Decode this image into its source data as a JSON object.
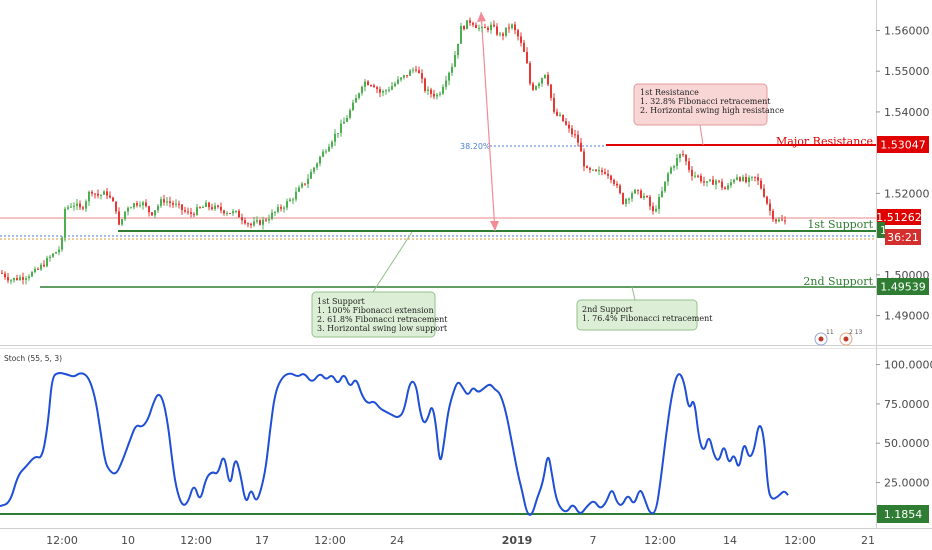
{
  "chart_data": [
    {
      "type": "candlestick",
      "indicator_name": "",
      "y_ticks": [
        "1.56000",
        "1.55000",
        "1.54000",
        "1.52000",
        "1.50000",
        "1.49000"
      ],
      "ylim": [
        1.484,
        1.5665
      ],
      "x_ticks": [
        "12:00",
        "10",
        "12:00",
        "17",
        "12:00",
        "24",
        "2019",
        "7",
        "12:00",
        "14",
        "12:00",
        "21"
      ],
      "price_path": [
        [
          0,
          1.5005
        ],
        [
          10,
          1.4988
        ],
        [
          22,
          1.4995
        ],
        [
          35,
          1.5008
        ],
        [
          50,
          1.5045
        ],
        [
          60,
          1.5068
        ],
        [
          62,
          1.51
        ],
        [
          64,
          1.5162
        ],
        [
          72,
          1.5175
        ],
        [
          80,
          1.516
        ],
        [
          90,
          1.521
        ],
        [
          96,
          1.5195
        ],
        [
          106,
          1.52
        ],
        [
          116,
          1.5158
        ],
        [
          118,
          1.5118
        ],
        [
          126,
          1.5168
        ],
        [
          140,
          1.518
        ],
        [
          150,
          1.515
        ],
        [
          162,
          1.5185
        ],
        [
          175,
          1.517
        ],
        [
          188,
          1.5148
        ],
        [
          205,
          1.517
        ],
        [
          222,
          1.5158
        ],
        [
          236,
          1.515
        ],
        [
          250,
          1.5122
        ],
        [
          262,
          1.5132
        ],
        [
          275,
          1.5155
        ],
        [
          290,
          1.5185
        ],
        [
          305,
          1.523
        ],
        [
          318,
          1.5285
        ],
        [
          330,
          1.533
        ],
        [
          342,
          1.537
        ],
        [
          354,
          1.5425
        ],
        [
          362,
          1.5475
        ],
        [
          372,
          1.547
        ],
        [
          380,
          1.5445
        ],
        [
          390,
          1.5462
        ],
        [
          405,
          1.549
        ],
        [
          415,
          1.551
        ],
        [
          425,
          1.545
        ],
        [
          437,
          1.544
        ],
        [
          445,
          1.5485
        ],
        [
          452,
          1.552
        ],
        [
          460,
          1.5605
        ],
        [
          470,
          1.5625
        ],
        [
          480,
          1.56
        ],
        [
          490,
          1.561
        ],
        [
          500,
          1.5585
        ],
        [
          510,
          1.5615
        ],
        [
          518,
          1.558
        ],
        [
          525,
          1.553
        ],
        [
          530,
          1.5455
        ],
        [
          538,
          1.5475
        ],
        [
          545,
          1.55
        ],
        [
          553,
          1.5395
        ],
        [
          560,
          1.5385
        ],
        [
          568,
          1.5355
        ],
        [
          576,
          1.5335
        ],
        [
          585,
          1.5255
        ],
        [
          595,
          1.525
        ],
        [
          605,
          1.5255
        ],
        [
          612,
          1.5235
        ],
        [
          622,
          1.518
        ],
        [
          632,
          1.5205
        ],
        [
          645,
          1.519
        ],
        [
          652,
          1.5152
        ],
        [
          660,
          1.5195
        ],
        [
          668,
          1.5255
        ],
        [
          675,
          1.528
        ],
        [
          681,
          1.53
        ],
        [
          690,
          1.525
        ],
        [
          698,
          1.524
        ],
        [
          705,
          1.5222
        ],
        [
          715,
          1.5232
        ],
        [
          725,
          1.5208
        ],
        [
          735,
          1.5245
        ],
        [
          745,
          1.5228
        ],
        [
          755,
          1.5238
        ],
        [
          762,
          1.5205
        ],
        [
          770,
          1.515
        ],
        [
          775,
          1.5135
        ],
        [
          780,
          1.5132
        ],
        [
          785,
          1.5128
        ]
      ]
    },
    {
      "type": "line",
      "indicator_name": "Stoch (55, 5, 3)",
      "y_ticks": [
        "100.0000",
        "75.0000",
        "50.0000",
        "25.0000"
      ],
      "ylim": [
        -2,
        108
      ],
      "level_line": 1.1854,
      "values": [
        [
          0,
          10
        ],
        [
          10,
          12
        ],
        [
          18,
          30
        ],
        [
          26,
          35
        ],
        [
          35,
          42
        ],
        [
          42,
          40
        ],
        [
          48,
          62
        ],
        [
          52,
          92
        ],
        [
          58,
          95
        ],
        [
          66,
          94
        ],
        [
          74,
          92
        ],
        [
          80,
          95
        ],
        [
          88,
          93
        ],
        [
          95,
          80
        ],
        [
          100,
          60
        ],
        [
          105,
          38
        ],
        [
          110,
          32
        ],
        [
          116,
          30
        ],
        [
          122,
          38
        ],
        [
          130,
          52
        ],
        [
          136,
          62
        ],
        [
          142,
          60
        ],
        [
          148,
          65
        ],
        [
          153,
          75
        ],
        [
          158,
          82
        ],
        [
          163,
          78
        ],
        [
          168,
          62
        ],
        [
          172,
          40
        ],
        [
          176,
          22
        ],
        [
          182,
          10
        ],
        [
          188,
          12
        ],
        [
          194,
          25
        ],
        [
          200,
          12
        ],
        [
          206,
          28
        ],
        [
          212,
          32
        ],
        [
          218,
          30
        ],
        [
          224,
          45
        ],
        [
          230,
          20
        ],
        [
          235,
          42
        ],
        [
          240,
          32
        ],
        [
          246,
          10
        ],
        [
          251,
          22
        ],
        [
          256,
          12
        ],
        [
          261,
          20
        ],
        [
          266,
          35
        ],
        [
          270,
          58
        ],
        [
          275,
          82
        ],
        [
          282,
          92
        ],
        [
          290,
          95
        ],
        [
          298,
          92
        ],
        [
          304,
          95
        ],
        [
          312,
          88
        ],
        [
          320,
          95
        ],
        [
          326,
          90
        ],
        [
          332,
          94
        ],
        [
          338,
          87
        ],
        [
          344,
          95
        ],
        [
          350,
          85
        ],
        [
          356,
          92
        ],
        [
          362,
          80
        ],
        [
          368,
          75
        ],
        [
          374,
          77
        ],
        [
          380,
          72
        ],
        [
          386,
          70
        ],
        [
          392,
          68
        ],
        [
          398,
          66
        ],
        [
          404,
          70
        ],
        [
          410,
          90
        ],
        [
          416,
          88
        ],
        [
          420,
          70
        ],
        [
          424,
          62
        ],
        [
          428,
          66
        ],
        [
          432,
          75
        ],
        [
          436,
          62
        ],
        [
          440,
          35
        ],
        [
          444,
          50
        ],
        [
          448,
          70
        ],
        [
          453,
          82
        ],
        [
          458,
          90
        ],
        [
          463,
          85
        ],
        [
          468,
          80
        ],
        [
          473,
          86
        ],
        [
          478,
          82
        ],
        [
          484,
          85
        ],
        [
          490,
          88
        ],
        [
          495,
          84
        ],
        [
          500,
          82
        ],
        [
          506,
          70
        ],
        [
          512,
          50
        ],
        [
          518,
          30
        ],
        [
          522,
          20
        ],
        [
          527,
          5
        ],
        [
          532,
          4
        ],
        [
          537,
          15
        ],
        [
          543,
          25
        ],
        [
          548,
          45
        ],
        [
          552,
          30
        ],
        [
          556,
          15
        ],
        [
          561,
          8
        ],
        [
          567,
          6
        ],
        [
          573,
          12
        ],
        [
          580,
          4
        ],
        [
          587,
          10
        ],
        [
          594,
          14
        ],
        [
          600,
          8
        ],
        [
          606,
          12
        ],
        [
          612,
          22
        ],
        [
          617,
          12
        ],
        [
          622,
          10
        ],
        [
          628,
          18
        ],
        [
          634,
          10
        ],
        [
          640,
          22
        ],
        [
          645,
          14
        ],
        [
          650,
          5
        ],
        [
          656,
          6
        ],
        [
          661,
          28
        ],
        [
          666,
          55
        ],
        [
          672,
          82
        ],
        [
          678,
          96
        ],
        [
          684,
          90
        ],
        [
          689,
          70
        ],
        [
          694,
          80
        ],
        [
          699,
          52
        ],
        [
          704,
          44
        ],
        [
          709,
          56
        ],
        [
          714,
          42
        ],
        [
          719,
          38
        ],
        [
          724,
          50
        ],
        [
          729,
          36
        ],
        [
          734,
          44
        ],
        [
          739,
          32
        ],
        [
          744,
          52
        ],
        [
          749,
          40
        ],
        [
          754,
          45
        ],
        [
          759,
          64
        ],
        [
          764,
          55
        ],
        [
          768,
          20
        ],
        [
          772,
          14
        ],
        [
          778,
          16
        ],
        [
          784,
          20
        ],
        [
          788,
          17
        ]
      ]
    }
  ],
  "price_levels": {
    "major_resistance": {
      "label": "Major Resistance",
      "value": "1.53047"
    },
    "current_price": {
      "value": "1.51262",
      "countdown": "36:21"
    },
    "first_support": {
      "label": "1st Support",
      "value": "1"
    },
    "second_support": {
      "label": "2nd Support",
      "value": "1.49539"
    },
    "fib_label": "38.20%",
    "stoch_value": "1.1854"
  },
  "annotations": {
    "first_resistance": [
      "1st Resistance",
      "1. 32.8% Fibonacci retracement",
      "2. Horizontal swing high resistance"
    ],
    "first_support": [
      "1st Support",
      "1. 100% Fibonacci extension",
      "2. 61.8% Fibonacci retracement",
      "3. Horizontal swing low support"
    ],
    "second_support": [
      "2nd Support",
      "1. 76.4% Fibonacci retracement"
    ]
  },
  "events": {
    "badge1": "11",
    "badge2": "2 13"
  },
  "colors": {
    "up": "#4caf50",
    "down": "#e53935",
    "resistance": "#e00000",
    "support": "#2e7d32",
    "stoch": "#1e4fd6",
    "ann_red_bg": "#f8d6d6",
    "ann_green_bg": "#dcefd6"
  }
}
